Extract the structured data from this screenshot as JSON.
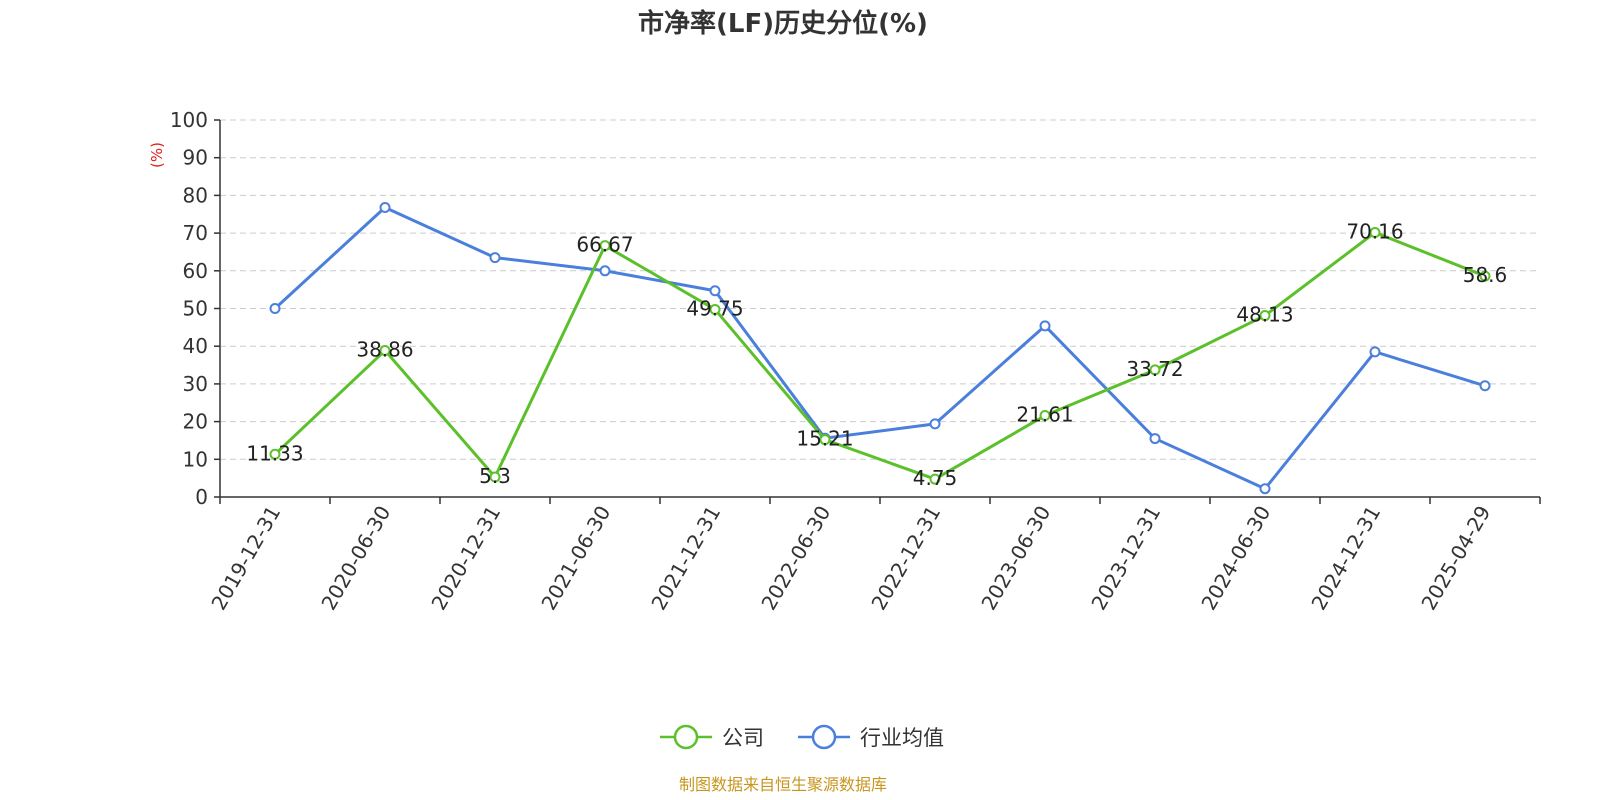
{
  "chart_data": {
    "type": "line",
    "title": "市净率(LF)历史分位(%)",
    "ylabel": "(%)",
    "xlabel": "",
    "ylim": [
      0,
      100
    ],
    "yticks": [
      "0",
      "10",
      "20",
      "30",
      "40",
      "50",
      "60",
      "70",
      "80",
      "90",
      "100"
    ],
    "categories": [
      "2019-12-31",
      "2020-06-30",
      "2020-12-31",
      "2021-06-30",
      "2021-12-31",
      "2022-06-30",
      "2022-12-31",
      "2023-06-30",
      "2023-12-31",
      "2024-06-30",
      "2024-12-31",
      "2025-04-29"
    ],
    "grid": true,
    "legend_position": "bottom-center",
    "series": [
      {
        "name": "公司",
        "color": "#5cc02b",
        "values": [
          11.33,
          38.86,
          5.3,
          66.67,
          49.75,
          15.21,
          4.75,
          21.61,
          33.72,
          48.13,
          70.16,
          58.6
        ],
        "labels": [
          "11.33",
          "38.86",
          "5.3",
          "66.67",
          "49.75",
          "15.21",
          "4.75",
          "21.61",
          "33.72",
          "48.13",
          "70.16",
          "58.6"
        ]
      },
      {
        "name": "行业均值",
        "color": "#4b7fdc",
        "values": [
          50,
          76.8,
          63.5,
          60,
          54.7,
          15.6,
          19.4,
          45.4,
          15.5,
          2.2,
          38.5,
          29.5
        ]
      }
    ],
    "source": "制图数据来自恒生聚源数据库",
    "source_color": "#c8961e",
    "ylabel_color": "#e0201a"
  }
}
